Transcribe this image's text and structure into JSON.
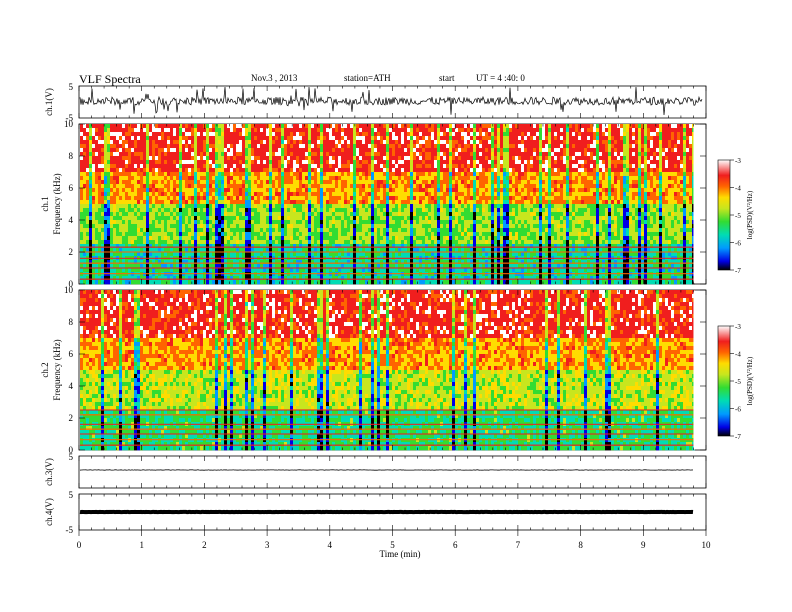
{
  "header": {
    "title": "VLF Spectra",
    "date": "Nov.3 , 2013",
    "station": "station=ATH",
    "start_label": "start",
    "start_ut": "UT = 4 :40: 0"
  },
  "chart_data": [
    {
      "type": "line",
      "panel": "ch1-waveform",
      "ylabel": "ch.1(V)",
      "ylim": [
        -5,
        5
      ],
      "yticks": [
        "5",
        "-5"
      ],
      "xlim": [
        0,
        10
      ],
      "description_values": {
        "baseline_V": 0,
        "spike_amplitude_V": 2.5
      },
      "colors": {
        "line": "#000000"
      }
    },
    {
      "type": "heatmap",
      "panel": "ch1-spectrogram",
      "ylabel": [
        "ch.1",
        "Frequency (kHz)"
      ],
      "ylim": [
        0,
        10
      ],
      "yticks": [
        "10",
        "8",
        "6",
        "4",
        "2",
        "0"
      ],
      "xlim": [
        0,
        9.8
      ],
      "colorbar": {
        "label": "log(PSD)(V²/Hz)",
        "range": [
          -7,
          -3
        ],
        "ticks": [
          "-3",
          "-4",
          "-5",
          "-6",
          "-7"
        ]
      },
      "bands_khz": [
        0.3,
        0.65,
        1.0,
        1.3,
        1.6,
        2.0,
        2.3
      ]
    },
    {
      "type": "heatmap",
      "panel": "ch2-spectrogram",
      "ylabel": [
        "ch.2",
        "Frequency (kHz)"
      ],
      "ylim": [
        0,
        10
      ],
      "yticks": [
        "10",
        "8",
        "6",
        "4",
        "2",
        "0"
      ],
      "xlim": [
        0,
        9.8
      ],
      "colorbar": {
        "label": "log(PSD)(V²/Hz)",
        "range": [
          -7,
          -3
        ],
        "ticks": [
          "-3",
          "-4",
          "-5",
          "-6",
          "-7"
        ]
      },
      "bands_khz": [
        0.3,
        0.65,
        1.0,
        1.3,
        1.6,
        2.2,
        2.5
      ]
    },
    {
      "type": "line",
      "panel": "ch3-waveform",
      "ylabel": "ch.3(V)",
      "ylim": [
        -5,
        5
      ],
      "yticks": [
        "5"
      ],
      "xlim": [
        0,
        9.8
      ],
      "description_values": {
        "baseline_V": 0
      }
    },
    {
      "type": "line",
      "panel": "ch4-waveform",
      "ylabel": "ch.4(V)",
      "ylim": [
        -5,
        5
      ],
      "yticks": [
        "5",
        "-5"
      ],
      "xlim": [
        0,
        9.8
      ],
      "description_values": {
        "baseline_V": 0
      }
    }
  ],
  "xaxis": {
    "label": "Time (min)",
    "ticks": [
      "0",
      "1",
      "2",
      "3",
      "4",
      "5",
      "6",
      "7",
      "8",
      "9",
      "10"
    ],
    "range": [
      0,
      10
    ]
  },
  "colorscale": [
    "#000000",
    "#0000e6",
    "#009bff",
    "#00dcb4",
    "#32dc32",
    "#c8e61e",
    "#ffdc00",
    "#ff6400",
    "#f01e1e",
    "#ffffff"
  ]
}
